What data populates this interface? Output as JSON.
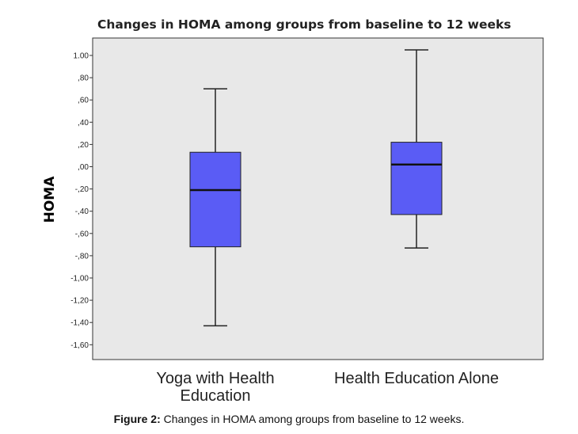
{
  "chart_data": {
    "type": "boxplot",
    "title": "Changes in HOMA among groups from baseline to 12 weeks",
    "xlabel": "",
    "ylabel": "HOMA",
    "ylim": [
      -1.7,
      1.08
    ],
    "yticks": [
      1.0,
      0.8,
      0.6,
      0.4,
      0.2,
      0.0,
      -0.2,
      -0.4,
      -0.6,
      -0.8,
      -1.0,
      -1.2,
      -1.4,
      -1.6
    ],
    "ytick_labels": [
      "1.00",
      ",80",
      ",60",
      ",40",
      ",20",
      ",00",
      "-,20",
      "-,40",
      "-,60",
      "-,80",
      "-1,00",
      "-1,20",
      "-1,40",
      "-1,60"
    ],
    "categories": [
      [
        "Yoga with Health",
        "Education"
      ],
      [
        "Health Education Alone"
      ]
    ],
    "boxes": [
      {
        "whisker_low": -1.43,
        "q1": -0.72,
        "median": -0.21,
        "q3": 0.13,
        "whisker_high": 0.7
      },
      {
        "whisker_low": -0.73,
        "q1": -0.43,
        "median": 0.02,
        "q3": 0.22,
        "whisker_high": 1.05
      }
    ],
    "grid": false,
    "legend": "none",
    "colors": {
      "box_fill": "#5a5cf5",
      "box_stroke": "#222222",
      "plot_bg": "#e8e8e8"
    }
  },
  "caption": {
    "label": "Figure 2:",
    "text": " Changes in HOMA among groups from baseline to 12 weeks."
  }
}
